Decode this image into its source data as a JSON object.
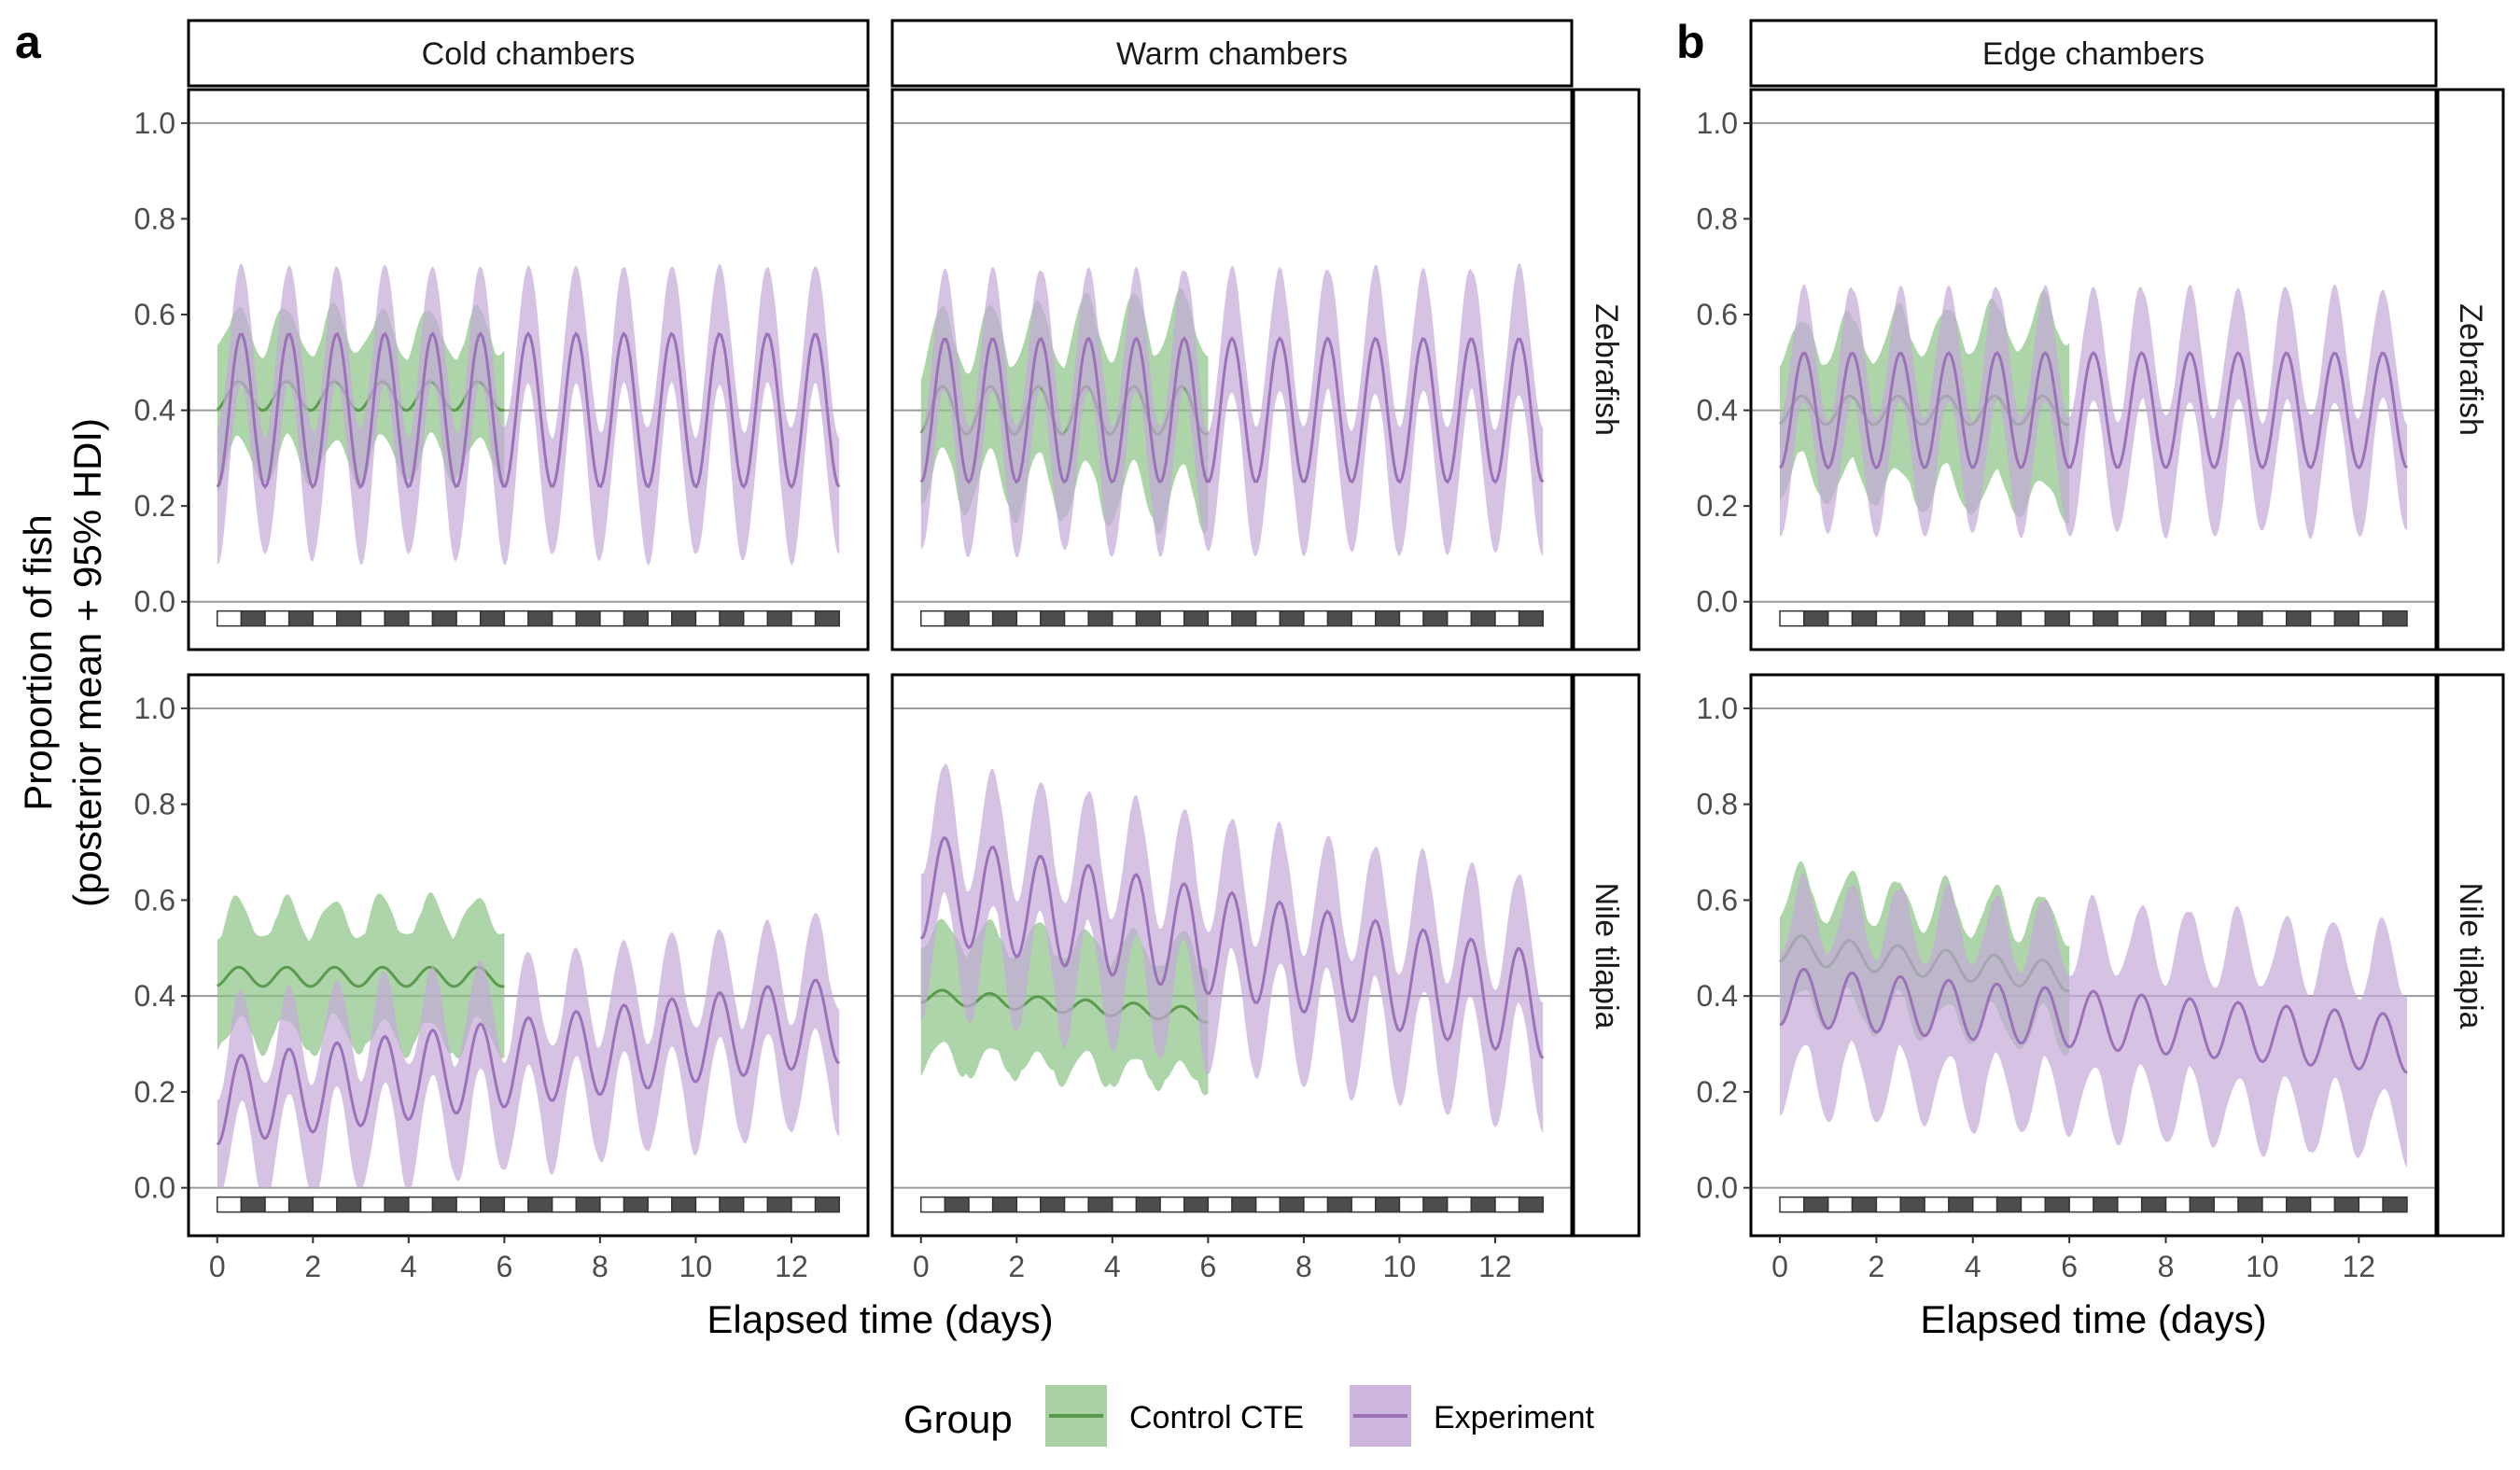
{
  "panel_labels": {
    "a": "a",
    "b": "b"
  },
  "strips": {
    "cold": "Cold chambers",
    "warm": "Warm chambers",
    "edge": "Edge chambers",
    "zebrafish": "Zebrafish",
    "tilapia": "Nile tilapia"
  },
  "axes": {
    "ylabel_line1": "Proportion of fish",
    "ylabel_line2": "(posterior mean + 95% HDI)",
    "xlabel": "Elapsed time (days)",
    "yticks": [
      "0.0",
      "0.2",
      "0.4",
      "0.6",
      "0.8",
      "1.0"
    ],
    "xticks": [
      "0",
      "2",
      "4",
      "6",
      "8",
      "10",
      "12"
    ]
  },
  "legend": {
    "title": "Group",
    "control_label": "Control CTE",
    "experiment_label": "Experiment"
  },
  "colors": {
    "control_line": "#5a9a4e",
    "control_fill": "#8cc286",
    "experiment_line": "#9b72b8",
    "experiment_fill": "#c5aad8",
    "light_box": "#ffffff",
    "dark_box": "#4d4d4d"
  },
  "chart_data": {
    "type": "line",
    "title": "",
    "xlabel": "Elapsed time (days)",
    "ylabel": "Proportion of fish (posterior mean + 95% HDI)",
    "xlim": [
      -0.6,
      13.6
    ],
    "ylim": [
      -0.1,
      1.07
    ],
    "reference_lines": [
      0,
      0.4,
      1
    ],
    "photoperiod": {
      "days": 13,
      "description": "alternating light/dark boxes, one pair per day"
    },
    "series": [
      {
        "name": "Control CTE",
        "x_range": [
          0,
          6
        ]
      },
      {
        "name": "Experiment",
        "x_range": [
          0,
          13
        ]
      }
    ],
    "panels": [
      {
        "chamber": "Cold chambers",
        "species": "Zebrafish",
        "control": {
          "mean": 0.43,
          "amp": 0.03,
          "phase": 0.2,
          "hw": 0.13,
          "hw_end": 0.12
        },
        "experiment": {
          "mean": 0.4,
          "amp": 0.16,
          "phase": 0.25,
          "hw": 0.12
        }
      },
      {
        "chamber": "Warm chambers",
        "species": "Zebrafish",
        "control": {
          "mean": 0.4,
          "amp": 0.05,
          "phase": 0.2,
          "hw": 0.13,
          "hw_end": 0.18
        },
        "experiment": {
          "mean": 0.4,
          "amp": 0.15,
          "phase": 0.25,
          "hw": 0.12
        }
      },
      {
        "chamber": "Edge chambers",
        "species": "Zebrafish",
        "control": {
          "mean": 0.4,
          "amp": 0.03,
          "phase": 0.2,
          "hw": 0.13,
          "hw_end": 0.18
        },
        "experiment": {
          "mean": 0.4,
          "amp": 0.12,
          "phase": 0.25,
          "hw": 0.11
        }
      },
      {
        "chamber": "Cold chambers",
        "species": "Nile tilapia",
        "control": {
          "mean": 0.44,
          "amp": 0.02,
          "phase": 0.2,
          "hw": 0.11,
          "hw_end": 0.12
        },
        "experiment": {
          "mean_start": 0.18,
          "mean_end": 0.35,
          "amp": 0.09,
          "phase": 0.25,
          "hw": 0.11
        }
      },
      {
        "chamber": "Warm chambers",
        "species": "Nile tilapia",
        "control": {
          "mean_start": 0.4,
          "mean_end": 0.36,
          "amp": 0.015,
          "phase": 0.2,
          "hw": 0.12
        },
        "experiment": {
          "mean_start": 0.63,
          "mean_end": 0.38,
          "amp": 0.11,
          "phase": 0.25,
          "hw": 0.13
        }
      },
      {
        "chamber": "Edge chambers",
        "species": "Nile tilapia",
        "control": {
          "mean_start": 0.5,
          "mean_end": 0.44,
          "amp": 0.03,
          "phase": 0.2,
          "hw": 0.11
        },
        "experiment": {
          "mean_start": 0.4,
          "mean_end": 0.3,
          "amp": 0.06,
          "phase": 0.25,
          "hw": 0.16
        }
      }
    ]
  }
}
